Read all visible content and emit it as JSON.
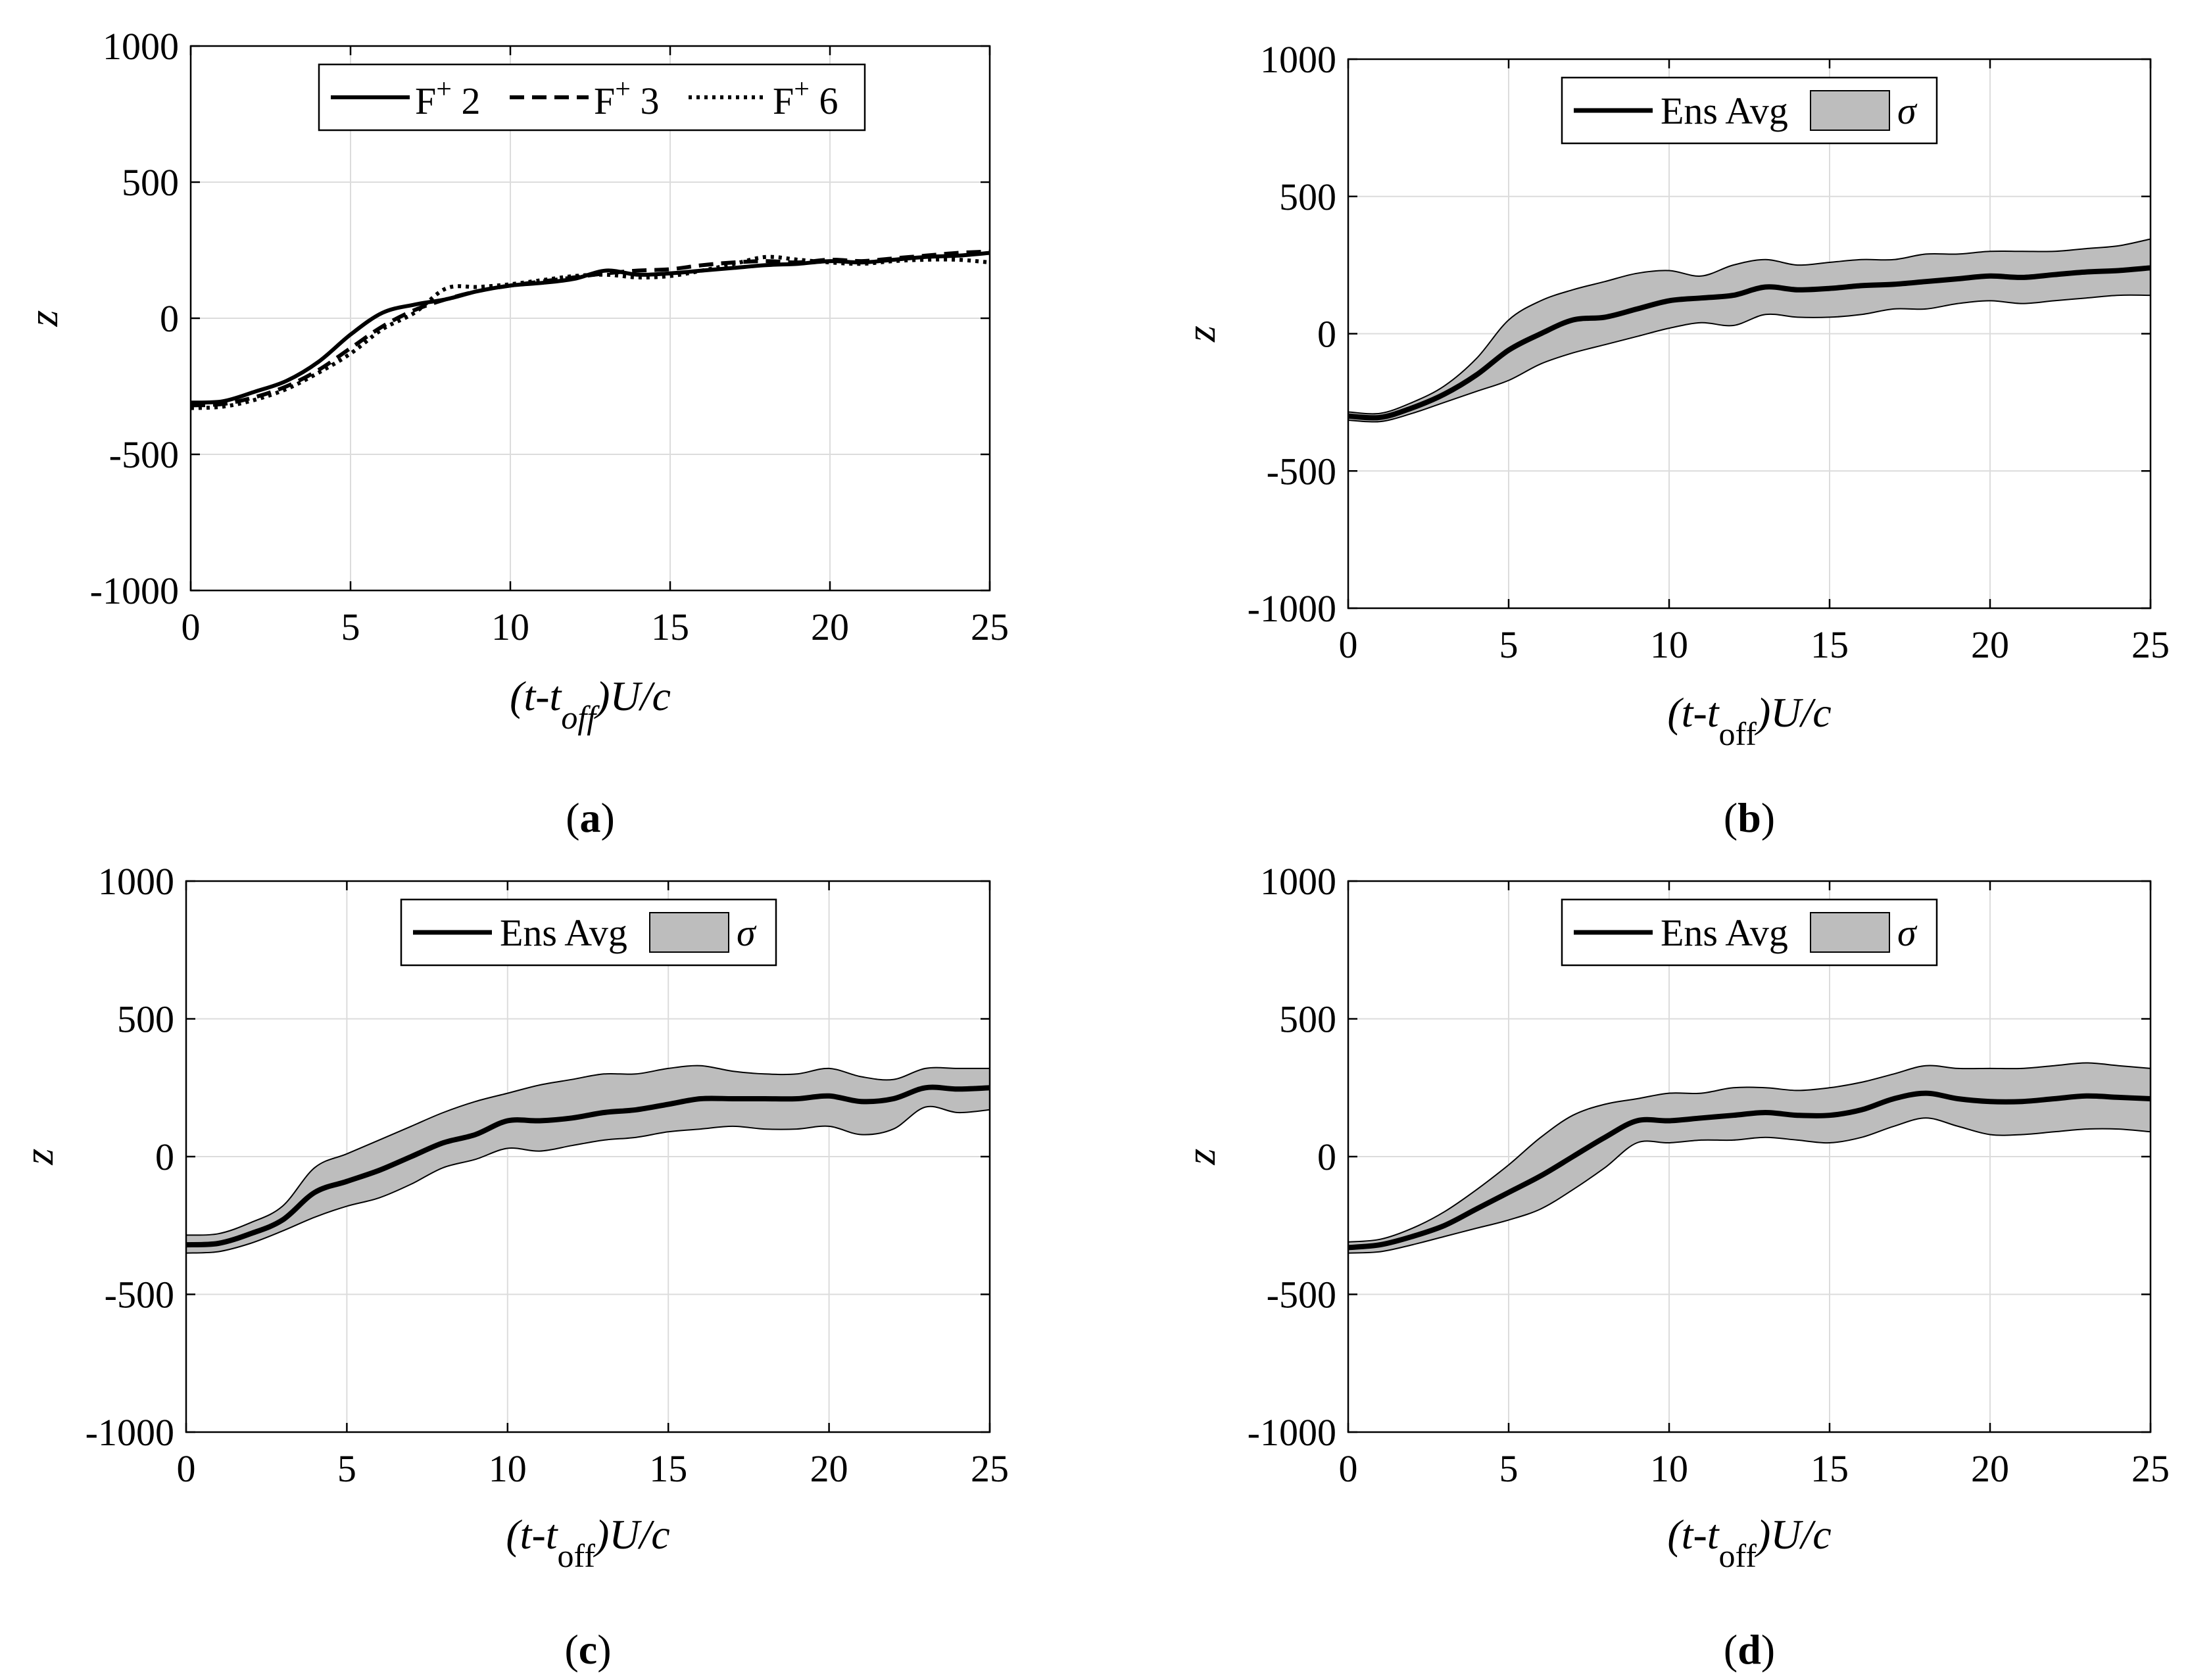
{
  "chart_data": [
    {
      "panel": "a",
      "type": "line",
      "title": "",
      "xlabel": "(t-t_off)U/c",
      "xlabel_parts": {
        "pre": "(t-t",
        "sub": "off",
        "post": ")U/c"
      },
      "ylabel": "z",
      "xlim": [
        0,
        25
      ],
      "ylim": [
        -1000,
        1000
      ],
      "xticks": [
        "0",
        "5",
        "10",
        "15",
        "20",
        "25"
      ],
      "yticks": [
        "-1000",
        "-500",
        "0",
        "500",
        "1000"
      ],
      "grid": true,
      "legend_position": "top",
      "legend": [
        {
          "label": "F",
          "sup": "+",
          "suffix": " 2",
          "style": "solid"
        },
        {
          "label": "F",
          "sup": "+",
          "suffix": " 3",
          "style": "dashed"
        },
        {
          "label": "F",
          "sup": "+",
          "suffix": " 6",
          "style": "dotted"
        }
      ],
      "x": [
        0,
        1,
        2,
        3,
        4,
        5,
        6,
        7,
        8,
        9,
        10,
        11,
        12,
        13,
        14,
        15,
        16,
        17,
        18,
        19,
        20,
        21,
        22,
        23,
        24,
        25
      ],
      "series": [
        {
          "name": "F+ 2",
          "style": "solid",
          "values": [
            -310,
            -305,
            -270,
            -230,
            -160,
            -60,
            20,
            50,
            70,
            100,
            120,
            130,
            145,
            175,
            160,
            165,
            175,
            185,
            195,
            200,
            210,
            205,
            215,
            225,
            230,
            240
          ]
        },
        {
          "name": "F+ 3",
          "style": "dashed",
          "values": [
            -320,
            -315,
            -290,
            -250,
            -190,
            -110,
            -30,
            30,
            70,
            100,
            120,
            135,
            150,
            165,
            175,
            180,
            195,
            205,
            210,
            205,
            215,
            210,
            220,
            230,
            240,
            245
          ]
        },
        {
          "name": "F+ 6",
          "style": "dotted",
          "values": [
            -330,
            -325,
            -300,
            -260,
            -200,
            -130,
            -40,
            20,
            110,
            115,
            125,
            140,
            155,
            160,
            150,
            155,
            175,
            200,
            225,
            215,
            205,
            200,
            210,
            215,
            215,
            205
          ]
        }
      ],
      "panel_label": "a"
    },
    {
      "panel": "b",
      "type": "area",
      "title": "",
      "xlabel": "(t-t_off)U/c",
      "xlabel_parts": {
        "pre": "(t-t",
        "sub": "off",
        "post": ")U/c"
      },
      "ylabel": "z",
      "xlim": [
        0,
        25
      ],
      "ylim": [
        -1000,
        1000
      ],
      "xticks": [
        "0",
        "5",
        "10",
        "15",
        "20",
        "25"
      ],
      "yticks": [
        "-1000",
        "-500",
        "0",
        "500",
        "1000"
      ],
      "grid": true,
      "legend_position": "top",
      "legend": [
        {
          "label": "Ens Avg",
          "style": "solid"
        },
        {
          "label": "σ",
          "style": "band"
        }
      ],
      "x": [
        0,
        1,
        2,
        3,
        4,
        5,
        6,
        7,
        8,
        9,
        10,
        11,
        12,
        13,
        14,
        15,
        16,
        17,
        18,
        19,
        20,
        21,
        22,
        23,
        24,
        25
      ],
      "series": [
        {
          "name": "Ens Avg",
          "values": [
            -300,
            -305,
            -270,
            -220,
            -150,
            -60,
            0,
            50,
            60,
            90,
            120,
            130,
            140,
            170,
            160,
            165,
            175,
            180,
            190,
            200,
            210,
            205,
            215,
            225,
            230,
            240
          ]
        },
        {
          "name": "σ upper",
          "values": [
            -285,
            -290,
            -250,
            -190,
            -90,
            50,
            120,
            160,
            190,
            220,
            230,
            210,
            250,
            270,
            250,
            260,
            270,
            270,
            290,
            290,
            300,
            300,
            300,
            310,
            320,
            345
          ]
        },
        {
          "name": "σ lower",
          "values": [
            -315,
            -320,
            -290,
            -250,
            -210,
            -170,
            -110,
            -70,
            -40,
            -10,
            20,
            40,
            30,
            70,
            60,
            60,
            70,
            90,
            90,
            110,
            120,
            110,
            120,
            130,
            140,
            140
          ]
        }
      ],
      "panel_label": "b"
    },
    {
      "panel": "c",
      "type": "area",
      "title": "",
      "xlabel": "(t-t_off)U/c",
      "xlabel_parts": {
        "pre": "(t-t",
        "sub": "off",
        "post": ")U/c"
      },
      "ylabel": "z",
      "xlim": [
        0,
        25
      ],
      "ylim": [
        -1000,
        1000
      ],
      "xticks": [
        "0",
        "5",
        "10",
        "15",
        "20",
        "25"
      ],
      "yticks": [
        "-1000",
        "-500",
        "0",
        "500",
        "1000"
      ],
      "grid": true,
      "legend_position": "top",
      "legend": [
        {
          "label": "Ens Avg",
          "style": "solid"
        },
        {
          "label": "σ",
          "style": "band"
        }
      ],
      "x": [
        0,
        1,
        2,
        3,
        4,
        5,
        6,
        7,
        8,
        9,
        10,
        11,
        12,
        13,
        14,
        15,
        16,
        17,
        18,
        19,
        20,
        21,
        22,
        23,
        24,
        25
      ],
      "series": [
        {
          "name": "Ens Avg",
          "values": [
            -320,
            -315,
            -280,
            -230,
            -130,
            -90,
            -50,
            0,
            50,
            80,
            130,
            130,
            140,
            160,
            170,
            190,
            210,
            210,
            210,
            210,
            220,
            200,
            210,
            250,
            245,
            250
          ]
        },
        {
          "name": "σ upper",
          "values": [
            -285,
            -280,
            -240,
            -180,
            -40,
            10,
            60,
            110,
            160,
            200,
            230,
            260,
            280,
            300,
            300,
            320,
            330,
            310,
            300,
            300,
            320,
            290,
            280,
            320,
            320,
            320
          ]
        },
        {
          "name": "σ lower",
          "values": [
            -350,
            -345,
            -315,
            -270,
            -220,
            -180,
            -150,
            -100,
            -40,
            -10,
            30,
            20,
            40,
            60,
            70,
            90,
            100,
            110,
            100,
            100,
            110,
            80,
            100,
            180,
            160,
            170
          ]
        }
      ],
      "panel_label": "c"
    },
    {
      "panel": "d",
      "type": "area",
      "title": "",
      "xlabel": "(t-t_off)U/c",
      "xlabel_parts": {
        "pre": "(t-t",
        "sub": "off",
        "post": ")U/c"
      },
      "ylabel": "z",
      "xlim": [
        0,
        25
      ],
      "ylim": [
        -1000,
        1000
      ],
      "xticks": [
        "0",
        "5",
        "10",
        "15",
        "20",
        "25"
      ],
      "yticks": [
        "-1000",
        "-500",
        "0",
        "500",
        "1000"
      ],
      "grid": true,
      "legend_position": "top",
      "legend": [
        {
          "label": "Ens Avg",
          "style": "solid"
        },
        {
          "label": "σ",
          "style": "band"
        }
      ],
      "x": [
        0,
        1,
        2,
        3,
        4,
        5,
        6,
        7,
        8,
        9,
        10,
        11,
        12,
        13,
        14,
        15,
        16,
        17,
        18,
        19,
        20,
        21,
        22,
        23,
        24,
        25
      ],
      "series": [
        {
          "name": "Ens Avg",
          "values": [
            -330,
            -320,
            -290,
            -250,
            -190,
            -130,
            -70,
            0,
            70,
            130,
            130,
            140,
            150,
            160,
            150,
            150,
            170,
            210,
            230,
            210,
            200,
            200,
            210,
            220,
            215,
            210
          ]
        },
        {
          "name": "σ upper",
          "values": [
            -310,
            -300,
            -260,
            -200,
            -120,
            -30,
            70,
            150,
            190,
            210,
            230,
            230,
            250,
            250,
            240,
            250,
            270,
            300,
            330,
            320,
            320,
            320,
            330,
            340,
            330,
            320
          ]
        },
        {
          "name": "σ lower",
          "values": [
            -350,
            -345,
            -320,
            -290,
            -260,
            -230,
            -190,
            -120,
            -40,
            50,
            50,
            60,
            60,
            70,
            60,
            50,
            70,
            110,
            140,
            110,
            80,
            80,
            90,
            100,
            100,
            90
          ]
        }
      ],
      "panel_label": "d"
    }
  ]
}
